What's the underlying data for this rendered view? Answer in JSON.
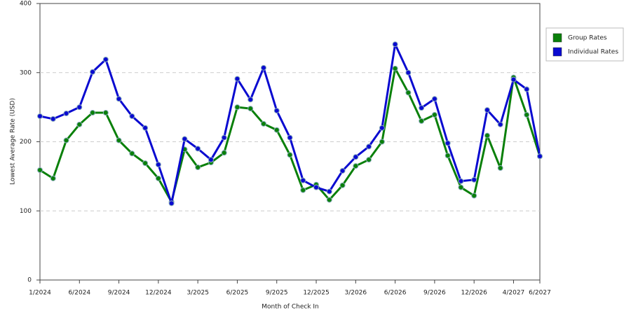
{
  "chart_data": {
    "type": "line",
    "x_label": "Month of Check In",
    "y_label": "Lowest Average Rate (USD)",
    "categories": [
      "1/2024",
      null,
      null,
      "6/2024",
      null,
      null,
      "9/2024",
      null,
      null,
      "12/2024",
      null,
      null,
      "3/2025",
      null,
      null,
      "6/2025",
      null,
      null,
      "9/2025",
      null,
      null,
      "12/2025",
      null,
      null,
      "3/2026",
      null,
      null,
      "6/2026",
      null,
      null,
      "9/2026",
      null,
      null,
      "12/2026",
      null,
      null,
      "4/2027",
      null,
      "6/2027"
    ],
    "series": [
      {
        "name": "Group Rates",
        "color": "#0a800a",
        "values": [
          159,
          147,
          202,
          225,
          242,
          242,
          202,
          183,
          169,
          147,
          113,
          189,
          163,
          170,
          184,
          250,
          248,
          226,
          217,
          181,
          130,
          138,
          116,
          137,
          165,
          174,
          200,
          306,
          271,
          230,
          239,
          180,
          134,
          122,
          209,
          162,
          293,
          239,
          179
        ]
      },
      {
        "name": "Individual Rates",
        "color": "#0a0ad0",
        "values": [
          237,
          233,
          241,
          250,
          301,
          319,
          262,
          237,
          220,
          167,
          111,
          204,
          190,
          174,
          206,
          291,
          261,
          307,
          245,
          206,
          144,
          134,
          128,
          158,
          178,
          193,
          220,
          341,
          300,
          249,
          262,
          198,
          143,
          145,
          246,
          225,
          290,
          276,
          179
        ]
      }
    ],
    "ylim": [
      0,
      400
    ],
    "yticks": [
      0,
      100,
      200,
      300,
      400
    ],
    "grid": true,
    "legend": "right"
  }
}
